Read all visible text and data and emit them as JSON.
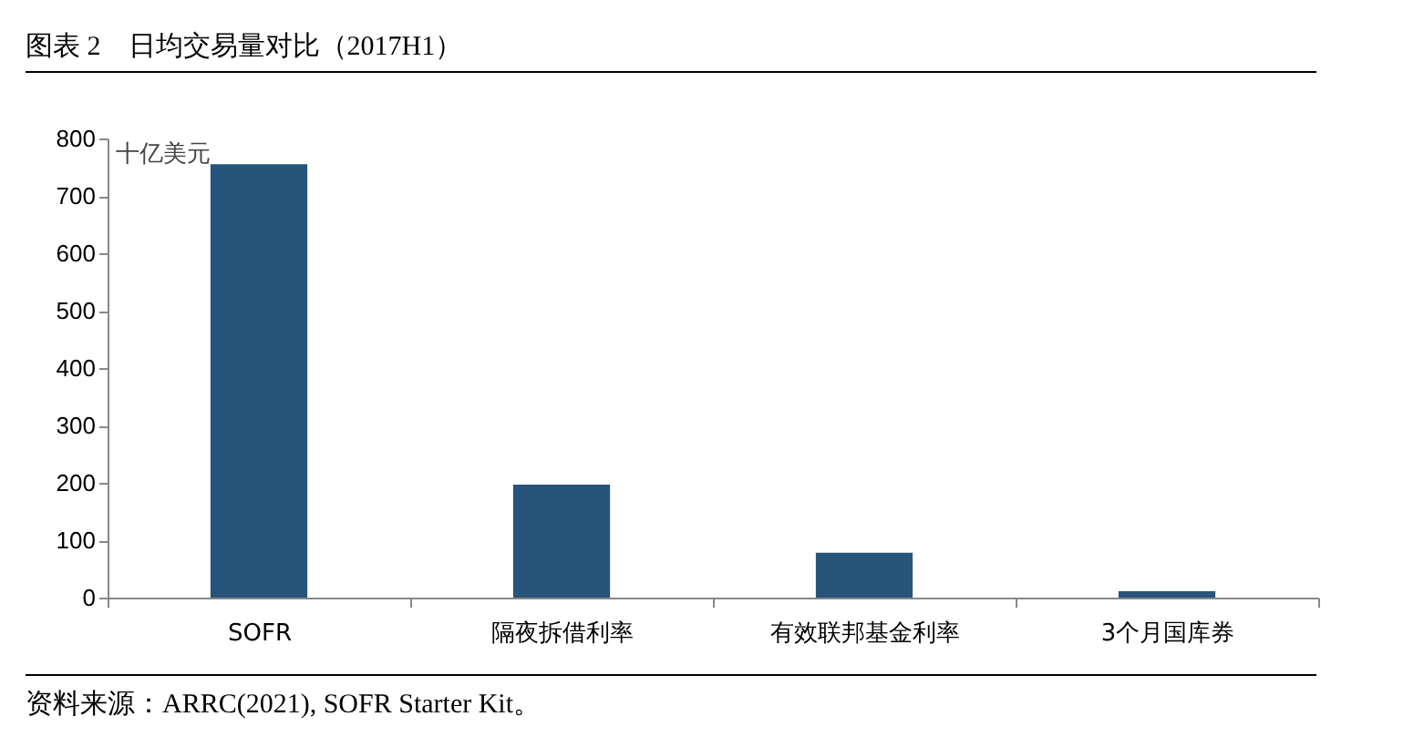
{
  "chart_data": {
    "type": "bar",
    "title": "图表 2　日均交易量对比（2017H1）",
    "ylabel": "十亿美元",
    "categories": [
      "SOFR",
      "隔夜拆借利率",
      "有效联邦基金利率",
      "3个月国库券"
    ],
    "values": [
      755,
      197,
      78,
      11
    ],
    "color": "#27547a",
    "ylim": [
      0,
      800
    ],
    "yticks": [
      0,
      100,
      200,
      300,
      400,
      500,
      600,
      700,
      800
    ],
    "grid": false,
    "annotations": [
      "资料来源：ARRC(2021), SOFR Starter Kit。"
    ]
  }
}
